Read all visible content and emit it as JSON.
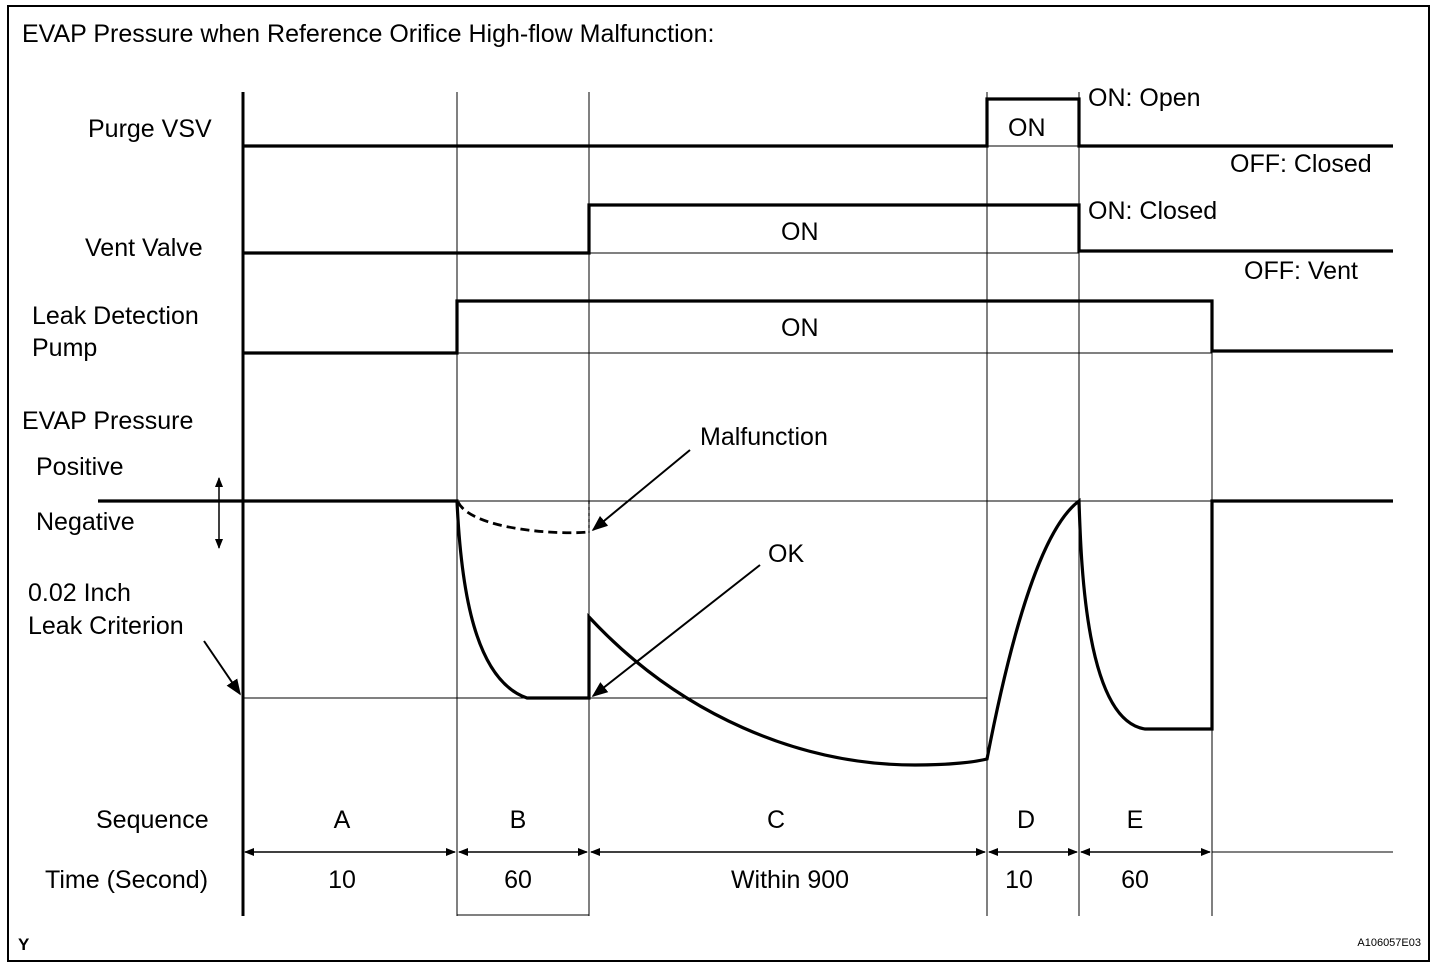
{
  "title": "EVAP Pressure when Reference Orifice High-flow Malfunction:",
  "signals": {
    "purge_vsv": {
      "label": "Purge VSV",
      "pulse": "ON",
      "state_on": "ON: Open",
      "state_off": "OFF: Closed"
    },
    "vent_valve": {
      "label": "Vent Valve",
      "pulse": "ON",
      "state_on": "ON: Closed",
      "state_off": "OFF: Vent"
    },
    "leak_pump": {
      "label_line1": "Leak Detection",
      "label_line2": "Pump",
      "pulse": "ON"
    }
  },
  "pressure": {
    "label": "EVAP Pressure",
    "positive": "Positive",
    "negative": "Negative",
    "criterion_line1": "0.02 Inch",
    "criterion_line2": "Leak Criterion",
    "malfunction": "Malfunction",
    "ok": "OK"
  },
  "sequence": {
    "label": "Sequence",
    "time_label": "Time (Second)",
    "steps": [
      {
        "name": "A",
        "time": "10"
      },
      {
        "name": "B",
        "time": "60"
      },
      {
        "name": "C",
        "time": "Within 900"
      },
      {
        "name": "D",
        "time": "10"
      },
      {
        "name": "E",
        "time": "60"
      }
    ]
  },
  "corner_label": "Y",
  "figure_id": "A106057E03"
}
